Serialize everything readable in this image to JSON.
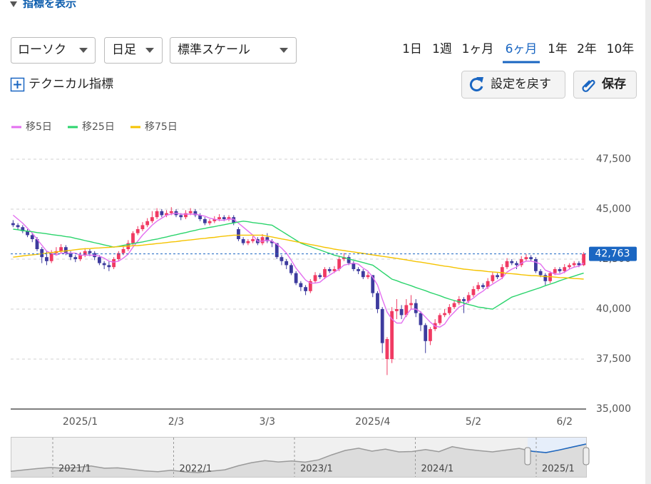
{
  "header": {
    "indicator_toggle": "指標を表示",
    "chart_type": "ローソク",
    "interval": "日足",
    "scale": "標準スケール",
    "periods": [
      "1日",
      "1週",
      "1ヶ月",
      "6ヶ月",
      "1年",
      "2年",
      "10年"
    ],
    "active_period": 3,
    "technical": "テクニカル指標",
    "reset": "設定を戻す",
    "save": "保存"
  },
  "chart_data": {
    "type": "candlestick",
    "categories": [
      null,
      null,
      null,
      null,
      null,
      null,
      null,
      null,
      null,
      null,
      null,
      null,
      null,
      null,
      "2025/1",
      null,
      null,
      null,
      null,
      null,
      null,
      null,
      null,
      null,
      null,
      null,
      null,
      null,
      null,
      null,
      null,
      null,
      null,
      null,
      "2/3",
      null,
      null,
      null,
      null,
      null,
      null,
      null,
      null,
      null,
      null,
      null,
      null,
      null,
      null,
      null,
      null,
      null,
      null,
      "3/3",
      null,
      null,
      null,
      null,
      null,
      null,
      null,
      null,
      null,
      null,
      null,
      null,
      null,
      null,
      null,
      null,
      null,
      null,
      null,
      null,
      null,
      "2025/4",
      null,
      null,
      null,
      null,
      null,
      null,
      null,
      null,
      null,
      null,
      null,
      null,
      null,
      null,
      null,
      null,
      null,
      null,
      null,
      null,
      "5/2",
      null,
      null,
      null,
      null,
      null,
      null,
      null,
      null,
      null,
      null,
      null,
      null,
      null,
      null,
      null,
      null,
      null,
      null,
      "6/2",
      null,
      null,
      null,
      null
    ],
    "open": [
      44300,
      44200,
      44100,
      43900,
      43700,
      43500,
      43000,
      42600,
      42400,
      42800,
      42900,
      43100,
      42800,
      42600,
      42500,
      42700,
      42900,
      42800,
      42600,
      42300,
      42200,
      42100,
      42500,
      42800,
      43000,
      43300,
      43800,
      44000,
      44200,
      44400,
      44600,
      44900,
      44700,
      44800,
      44900,
      44700,
      44600,
      44800,
      44900,
      44700,
      44500,
      44300,
      44400,
      44500,
      44600,
      44500,
      44600,
      44000,
      43500,
      43300,
      43400,
      43500,
      43300,
      43600,
      43400,
      43300,
      42600,
      42400,
      42200,
      41800,
      41300,
      41100,
      40900,
      41400,
      41700,
      41600,
      42000,
      41900,
      42000,
      42500,
      42600,
      42300,
      42000,
      41900,
      41600,
      41700,
      40800,
      40000,
      37500,
      37500,
      39900,
      40000,
      39700,
      40200,
      40300,
      39800,
      39200,
      38400,
      39000,
      39300,
      39700,
      39800,
      40100,
      40300,
      40500,
      40400,
      40700,
      41000,
      41200,
      41100,
      41400,
      41700,
      41600,
      42100,
      42400,
      42300,
      42200,
      42500,
      42600,
      42500,
      41900,
      41700,
      41400,
      41800,
      42000,
      41900,
      42100,
      42200,
      42300,
      42200
    ],
    "high": [
      44450,
      44300,
      44200,
      44000,
      43800,
      43600,
      43100,
      42900,
      42950,
      43100,
      43250,
      43200,
      42900,
      42700,
      42850,
      43050,
      43000,
      42900,
      42700,
      42400,
      42400,
      42600,
      42900,
      43150,
      43450,
      43900,
      44150,
      44350,
      44550,
      44900,
      45050,
      45000,
      44950,
      45100,
      45000,
      44800,
      44950,
      45050,
      45000,
      44800,
      44600,
      44500,
      44650,
      44750,
      44700,
      44700,
      44700,
      44100,
      43600,
      43500,
      43650,
      43600,
      43750,
      43800,
      43500,
      43300,
      42700,
      42500,
      42300,
      41900,
      41400,
      41200,
      41500,
      41850,
      41800,
      42100,
      42100,
      42150,
      42650,
      42800,
      42700,
      42400,
      42100,
      42000,
      41850,
      41700,
      40900,
      40100,
      38600,
      40100,
      40500,
      40200,
      40500,
      40700,
      40500,
      39900,
      39300,
      39100,
      39500,
      39800,
      40000,
      40250,
      40450,
      40650,
      40600,
      40850,
      41150,
      41350,
      41300,
      41550,
      41850,
      41800,
      42250,
      42550,
      42500,
      42400,
      42650,
      42750,
      42700,
      42600,
      42000,
      41800,
      41900,
      42100,
      42100,
      42250,
      42300,
      42400,
      42400,
      42850
    ],
    "low": [
      44100,
      43950,
      43800,
      43600,
      43350,
      42900,
      42300,
      42200,
      42300,
      42700,
      42800,
      42700,
      42450,
      42350,
      42400,
      42600,
      42650,
      42450,
      42200,
      42000,
      41900,
      42000,
      42400,
      42700,
      42900,
      43200,
      43700,
      43900,
      44100,
      44300,
      44500,
      44600,
      44600,
      44700,
      44600,
      44450,
      44500,
      44700,
      44600,
      44400,
      44200,
      44200,
      44300,
      44400,
      44400,
      44400,
      44200,
      43400,
      43200,
      43200,
      43300,
      43200,
      43200,
      43300,
      43100,
      42500,
      42200,
      42000,
      41700,
      41200,
      40900,
      40700,
      40800,
      41300,
      41500,
      41500,
      41800,
      41800,
      41900,
      42400,
      42200,
      41900,
      41750,
      41500,
      41500,
      40600,
      39800,
      37800,
      36700,
      37300,
      39500,
      39500,
      39600,
      40000,
      39600,
      38900,
      37800,
      38200,
      38900,
      39200,
      39600,
      39700,
      40000,
      40200,
      39800,
      40300,
      40600,
      40900,
      41000,
      41000,
      41300,
      41500,
      41500,
      42000,
      42200,
      42000,
      42100,
      42400,
      42400,
      41800,
      41600,
      41200,
      41300,
      41700,
      41800,
      41800,
      42000,
      42100,
      42100,
      42150
    ],
    "close": [
      44200,
      44100,
      43900,
      43700,
      43500,
      43000,
      42600,
      42400,
      42800,
      42900,
      43100,
      42800,
      42600,
      42500,
      42700,
      42900,
      42800,
      42600,
      42300,
      42200,
      42100,
      42500,
      42800,
      43000,
      43300,
      43800,
      44000,
      44200,
      44400,
      44600,
      44900,
      44700,
      44800,
      44900,
      44700,
      44600,
      44800,
      44900,
      44700,
      44500,
      44300,
      44400,
      44500,
      44600,
      44500,
      44600,
      44300,
      43500,
      43300,
      43400,
      43500,
      43300,
      43600,
      43400,
      43300,
      42600,
      42400,
      42200,
      41800,
      41300,
      41100,
      40900,
      41400,
      41700,
      41600,
      42000,
      41900,
      42000,
      42500,
      42600,
      42300,
      42000,
      41900,
      41600,
      41700,
      40800,
      40000,
      38300,
      38500,
      39900,
      40000,
      39700,
      40200,
      40300,
      39800,
      39200,
      38400,
      39000,
      39300,
      39700,
      39800,
      40100,
      40300,
      40500,
      40400,
      40700,
      41000,
      41200,
      41100,
      41400,
      41700,
      41600,
      42100,
      42400,
      42300,
      42200,
      42500,
      42600,
      42500,
      41900,
      41700,
      41400,
      41800,
      42000,
      41900,
      42100,
      42200,
      42300,
      42200,
      42763
    ],
    "up_color": "#f03a63",
    "down_color": "#3d3b9e",
    "series": [
      {
        "name": "移5日",
        "color": "#e36ff0",
        "values": [
          44700,
          44500,
          44300,
          44050,
          43800,
          43500,
          43200,
          42900,
          42800,
          42700,
          42800,
          42800,
          42800,
          42800,
          42700,
          42700,
          42700,
          42700,
          42650,
          42550,
          42400,
          42350,
          42400,
          42550,
          42750,
          43100,
          43400,
          43700,
          43950,
          44200,
          44400,
          44550,
          44700,
          44750,
          44800,
          44750,
          44750,
          44750,
          44750,
          44700,
          44650,
          44550,
          44500,
          44450,
          44450,
          44500,
          44500,
          44300,
          44100,
          43900,
          43700,
          43400,
          43400,
          43450,
          43400,
          43250,
          43050,
          42800,
          42450,
          42050,
          41750,
          41450,
          41300,
          41300,
          41350,
          41550,
          41700,
          41850,
          42000,
          42200,
          42250,
          42300,
          42250,
          42050,
          41900,
          41600,
          41200,
          40500,
          39850,
          39500,
          39300,
          39300,
          39700,
          40000,
          40000,
          39850,
          39600,
          39350,
          39150,
          39100,
          39250,
          39600,
          39850,
          40100,
          40200,
          40400,
          40550,
          40750,
          40900,
          41100,
          41250,
          41400,
          41550,
          41850,
          42000,
          42100,
          42300,
          42400,
          42400,
          42350,
          42250,
          41950,
          41850,
          41750,
          41750,
          41850,
          42000,
          42100,
          42150,
          42300
        ]
      },
      {
        "name": "移25日",
        "color": "#2bd46c",
        "values": [
          44000,
          43970,
          43930,
          43900,
          43870,
          43830,
          43800,
          43770,
          43730,
          43700,
          43670,
          43630,
          43600,
          43540,
          43490,
          43430,
          43380,
          43320,
          43270,
          43210,
          43160,
          43100,
          43140,
          43190,
          43230,
          43280,
          43320,
          43360,
          43410,
          43460,
          43500,
          43560,
          43610,
          43670,
          43720,
          43780,
          43830,
          43890,
          43940,
          44000,
          44040,
          44090,
          44130,
          44180,
          44220,
          44270,
          44310,
          44360,
          44400,
          44370,
          44330,
          44300,
          44270,
          44230,
          44200,
          44050,
          43900,
          43750,
          43600,
          43450,
          43300,
          43210,
          43130,
          43040,
          42960,
          42870,
          42790,
          42700,
          42640,
          42580,
          42510,
          42450,
          42390,
          42330,
          42260,
          42200,
          42030,
          41850,
          41680,
          41500,
          41420,
          41330,
          41250,
          41170,
          41080,
          41000,
          40920,
          40830,
          40750,
          40670,
          40580,
          40500,
          40430,
          40370,
          40300,
          40230,
          40170,
          40100,
          40070,
          40030,
          40000,
          40150,
          40300,
          40450,
          40600,
          40680,
          40760,
          40840,
          40920,
          41000,
          41080,
          41170,
          41250,
          41330,
          41420,
          41500,
          41580,
          41650,
          41730,
          41800
        ]
      },
      {
        "name": "移75日",
        "color": "#f5c300",
        "values": [
          42600,
          42630,
          42660,
          42690,
          42710,
          42740,
          42770,
          42800,
          42830,
          42860,
          42890,
          42910,
          42940,
          42970,
          43000,
          43020,
          43030,
          43050,
          43060,
          43080,
          43090,
          43110,
          43120,
          43140,
          43150,
          43170,
          43180,
          43200,
          43230,
          43250,
          43280,
          43300,
          43330,
          43360,
          43380,
          43410,
          43440,
          43460,
          43490,
          43520,
          43540,
          43570,
          43590,
          43620,
          43650,
          43670,
          43700,
          43700,
          43700,
          43700,
          43700,
          43700,
          43700,
          43650,
          43610,
          43560,
          43510,
          43470,
          43420,
          43370,
          43330,
          43280,
          43230,
          43190,
          43140,
          43090,
          43050,
          43000,
          42960,
          42930,
          42890,
          42860,
          42820,
          42790,
          42750,
          42710,
          42680,
          42640,
          42610,
          42570,
          42540,
          42500,
          42460,
          42420,
          42380,
          42350,
          42310,
          42270,
          42230,
          42190,
          42150,
          42120,
          42080,
          42040,
          42000,
          41980,
          41950,
          41930,
          41910,
          41880,
          41860,
          41840,
          41820,
          41790,
          41770,
          41750,
          41720,
          41700,
          41680,
          41670,
          41650,
          41630,
          41620,
          41600,
          41580,
          41570,
          41550,
          41530,
          41520,
          41500
        ]
      }
    ],
    "ylim": [
      35000,
      47500
    ],
    "yticks": [
      {
        "value": 35000,
        "label": "35,000"
      },
      {
        "value": 37500,
        "label": "37,500"
      },
      {
        "value": 40000,
        "label": "40,000"
      },
      {
        "value": 42500,
        "label": "42,500"
      },
      {
        "value": 45000,
        "label": "45,000"
      },
      {
        "value": 47500,
        "label": "47,500"
      }
    ],
    "grid": true,
    "last_label": "42,763",
    "last_color": "#1a66c2"
  },
  "navigator": {
    "values": [
      27000,
      27800,
      28600,
      29200,
      28700,
      29300,
      30100,
      28800,
      29000,
      28200,
      27300,
      26800,
      27600,
      26700,
      26300,
      27100,
      27900,
      30200,
      32000,
      33200,
      32400,
      33000,
      32300,
      33600,
      36500,
      39000,
      40300,
      38600,
      39800,
      38200,
      38400,
      39500,
      38300,
      41200,
      39800,
      38900,
      38200,
      39200,
      40200,
      38500,
      37800,
      39300,
      41000,
      42700
    ],
    "labels": [
      "2021/1",
      "2022/1",
      "2023/1",
      "2024/1",
      "2025/1"
    ],
    "color": "#9a9a9a",
    "window_color": "#1a66c2"
  }
}
